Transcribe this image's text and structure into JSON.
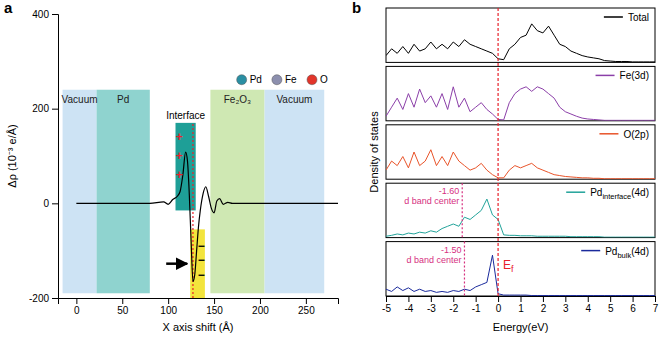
{
  "chart_data": [
    {
      "type": "line",
      "panel_label": "a",
      "x_label": "X axis shift (Å)",
      "y_label": "Δρ (10⁻³ e/Å)",
      "xlim": [
        -20,
        285
      ],
      "xticks": [
        0,
        50,
        100,
        150,
        200,
        250
      ],
      "ylim": [
        -200,
        400
      ],
      "yticks": [
        -200,
        0,
        200,
        400
      ],
      "x": [
        0,
        20,
        40,
        60,
        80,
        95,
        100,
        105,
        110,
        113,
        116,
        119,
        121,
        123,
        125,
        127,
        129,
        131,
        133,
        135,
        138,
        141,
        144,
        147,
        150,
        153,
        156,
        160,
        165,
        170,
        200,
        240,
        285
      ],
      "series": [
        {
          "color": "#000000",
          "values": [
            0,
            0,
            0,
            0,
            0,
            3,
            -2,
            8,
            15,
            25,
            60,
            108,
            90,
            20,
            -80,
            -165,
            -150,
            -100,
            -50,
            -15,
            20,
            35,
            15,
            -10,
            -20,
            5,
            10,
            -2,
            2,
            0,
            0,
            0,
            0
          ]
        }
      ],
      "regions": [
        {
          "label": "Vacuum",
          "x": [
            -15,
            22
          ],
          "y": [
            -190,
            240
          ],
          "color": "#cde3f4"
        },
        {
          "label": "Pd",
          "x": [
            22,
            80
          ],
          "y": [
            -190,
            240
          ],
          "color": "#8fd3cf"
        },
        {
          "label": "Fe₂O₃",
          "x": [
            146,
            205
          ],
          "y": [
            -190,
            240
          ],
          "color": "#cfe8b3"
        },
        {
          "label": "Vacuum",
          "x": [
            205,
            270
          ],
          "y": [
            -190,
            240
          ],
          "color": "#cde3f4"
        }
      ],
      "interface": {
        "label": "Interface",
        "x": [
          108,
          130
        ],
        "y": [
          -15,
          170
        ],
        "color": "#1e9f97"
      },
      "depletion": {
        "x": [
          124,
          140
        ],
        "y": [
          -200,
          -55
        ],
        "color": "#f3e43c"
      },
      "interface_line": 127,
      "signs": [
        {
          "text": "+",
          "x": 112,
          "y": 140,
          "color": "#e8202a"
        },
        {
          "text": "+",
          "x": 112,
          "y": 100,
          "color": "#e8202a"
        },
        {
          "text": "+",
          "x": 112,
          "y": 60,
          "color": "#e8202a"
        },
        {
          "text": "−",
          "x": 136,
          "y": -90,
          "color": "#000000"
        },
        {
          "text": "−",
          "x": 136,
          "y": -120,
          "color": "#000000"
        },
        {
          "text": "−",
          "x": 136,
          "y": -150,
          "color": "#000000"
        }
      ],
      "atoms": [
        {
          "name": "Pd",
          "color": "#2a8fa3"
        },
        {
          "name": "Fe",
          "color": "#8c8fae"
        },
        {
          "name": "O",
          "color": "#e2352a"
        }
      ]
    },
    {
      "type": "line",
      "panel_label": "b",
      "x_label": "Energy(eV)",
      "y_label": "Density of states",
      "xlim": [
        -5,
        7
      ],
      "xticks": [
        -5,
        -4,
        -3,
        -2,
        -1,
        0,
        1,
        2,
        3,
        4,
        5,
        6,
        7
      ],
      "tick_labels": "x",
      "x": [
        -5,
        -4.75,
        -4.5,
        -4.25,
        -4,
        -3.75,
        -3.5,
        -3.25,
        -3,
        -2.75,
        -2.5,
        -2.25,
        -2,
        -1.75,
        -1.5,
        -1.25,
        -1,
        -0.75,
        -0.5,
        -0.25,
        0,
        0.25,
        0.5,
        0.75,
        1,
        1.25,
        1.5,
        1.75,
        2,
        2.25,
        2.5,
        2.75,
        3,
        3.25,
        3.5,
        3.75,
        4,
        4.25,
        4.5,
        4.75,
        5,
        5.25,
        5.5,
        5.75,
        6,
        6.25,
        6.5,
        6.75,
        7
      ],
      "series": [
        {
          "name": "Total",
          "color": "#000000",
          "ylim": [
            0,
            12
          ],
          "values": [
            1.5,
            3,
            2,
            3.5,
            2,
            4,
            2.5,
            3,
            4.5,
            3,
            4,
            3,
            4.5,
            3.5,
            5,
            4,
            3.5,
            3,
            2.5,
            2,
            0.8,
            0.6,
            3,
            4,
            5.5,
            6,
            8.5,
            7,
            6.5,
            8,
            6,
            4,
            3.5,
            2.5,
            2,
            1.5,
            1.2,
            1,
            0.8,
            0.4,
            0.3,
            0.2,
            0.2,
            0.2,
            0.1,
            0.1,
            0.1,
            0.1,
            0.1
          ]
        },
        {
          "name": "Fe(3d)",
          "color": "#8b3fa8",
          "ylim": [
            0,
            12
          ],
          "values": [
            1,
            3,
            5,
            2.5,
            6,
            3,
            7,
            4,
            5.5,
            3,
            6,
            2.5,
            7.5,
            3,
            5,
            2,
            3,
            4,
            2.5,
            1.5,
            0.3,
            0.2,
            4,
            6,
            7,
            7.5,
            6.5,
            7.5,
            7,
            6,
            5,
            3,
            2,
            1.5,
            1,
            0.6,
            0.4,
            0.3,
            0.2,
            0.1,
            0.1,
            0.1,
            0.1,
            0.1,
            0.1,
            0.1,
            0.1,
            0.1,
            0.1
          ]
        },
        {
          "name": "O(2p)",
          "color": "#e8542a",
          "ylim": [
            0,
            12
          ],
          "values": [
            2,
            4,
            3,
            5,
            2.5,
            6,
            3,
            4,
            6.5,
            3,
            5,
            3,
            6,
            4,
            3,
            2,
            2.5,
            3.5,
            2,
            1,
            0.3,
            0.3,
            2,
            3,
            2.5,
            3,
            3.5,
            2.5,
            2,
            1.5,
            1,
            0.8,
            0.6,
            0.5,
            0.4,
            0.3,
            0.3,
            0.2,
            0.2,
            0.1,
            0.1,
            0.1,
            0.1,
            0.1,
            0.1,
            0.1,
            0.1,
            0.1,
            0.1
          ]
        },
        {
          "name": "Pdinterface(4d)",
          "color": "#22a39a",
          "ylim": [
            0,
            12
          ],
          "values": [
            0.3,
            0.5,
            0.8,
            0.6,
            1,
            0.8,
            1.2,
            1,
            1.5,
            1.2,
            2,
            2.5,
            3,
            2.5,
            4.5,
            4,
            5,
            6,
            8.5,
            5,
            4,
            0.6,
            0.5,
            0.5,
            0.4,
            0.4,
            0.4,
            0.3,
            0.3,
            0.3,
            0.3,
            0.3,
            0.3,
            0.2,
            0.2,
            0.2,
            0.2,
            0.2,
            0.2,
            0.1,
            0.1,
            0.1,
            0.1,
            0.1,
            0.1,
            0.1,
            0.1,
            0.1,
            0.1
          ]
        },
        {
          "name": "Pdbulk(4d)",
          "color": "#1a2a9c",
          "ylim": [
            0,
            12
          ],
          "values": [
            1.5,
            1,
            2,
            1.2,
            1.8,
            1,
            1.5,
            1,
            1.2,
            0.8,
            1,
            0.8,
            1.2,
            1,
            1.5,
            1.2,
            2,
            2.5,
            3,
            9,
            0.5,
            0.2,
            0.2,
            0.2,
            0.2,
            0.2,
            0.1,
            0.1,
            0.1,
            0.1,
            0.1,
            0.1,
            0.1,
            0.1,
            0.1,
            0.1,
            0.1,
            0.1,
            0.1,
            0.1,
            0.1,
            0.1,
            0.1,
            0.1,
            0.1,
            0.1,
            0.1,
            0.1,
            0.1
          ]
        }
      ],
      "fermi": {
        "x": 0,
        "label": "Ef"
      },
      "d_band_centers": [
        {
          "series": 3,
          "x": -1.6,
          "label": "-1.60",
          "text": "d band center"
        },
        {
          "series": 4,
          "x": -1.5,
          "label": "-1.50",
          "text": "d band center"
        }
      ]
    }
  ]
}
